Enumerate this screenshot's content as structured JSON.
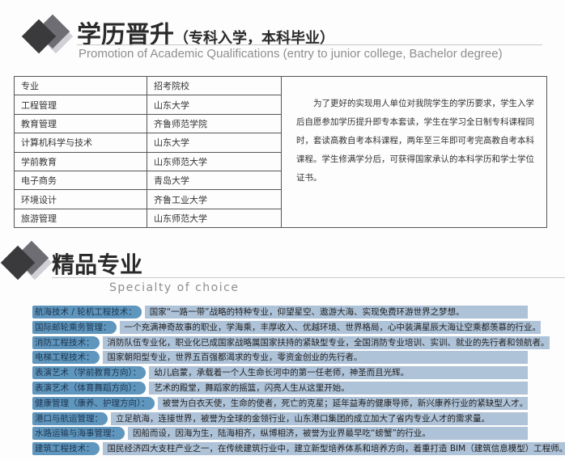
{
  "section1": {
    "title": "学历晋升",
    "title_paren": "（专科入学，本科毕业）",
    "subtitle": "Promotion of Academic Qualifications (entry to junior college, Bachelor degree)"
  },
  "table": {
    "headers": [
      "专业",
      "招考院校"
    ],
    "rows": [
      [
        "工程管理",
        "山东大学"
      ],
      [
        "教育管理",
        "齐鲁师范学院"
      ],
      [
        "计算机科学与技术",
        "山东大学"
      ],
      [
        "学前教育",
        "山东师范大学"
      ],
      [
        "电子商务",
        "青岛大学"
      ],
      [
        "环境设计",
        "齐鲁工业大学"
      ],
      [
        "旅游管理",
        "山东师范大学"
      ]
    ]
  },
  "description": "为了更好的实现用人单位对我院学生的学历要求，学生入学后自愿参加学历提升即专本套读，学生在学习全日制专科课程同时，套读高教自考本科课程，两年至三年即可考完高教自考本科课程。学生修满学分后，可获得国家承认的本科学历和学士学位证书。",
  "section2": {
    "title": "精品专业",
    "subtitle": "Specialty of choice"
  },
  "specialties": [
    {
      "label": "航海技术 / 轮机工程技术：",
      "text": "国家“一路一带”战略的特种专业，仰望星空、遨游大海、实现免费环游世界之梦想。"
    },
    {
      "label": "国际邮轮乘务管理：",
      "text": "一个充满神奇故事的职业，学海乘，丰厚收入、优越环境、世界格局，心中装满星辰大海让空乘都羡慕的行业。"
    },
    {
      "label": "消防工程技术：",
      "text": "消防队伍专业化，职业化已成国家战略属国家扶持的紧缺型专业，全国消防专业培训、实训、就业的先行者和领航者。"
    },
    {
      "label": "电梯工程技术：",
      "text": "国家朝阳型专业，世界五百强都渴求的专业，零资金创业的先行者。"
    },
    {
      "label": "表演艺术（学前教育方向）：",
      "text": "幼儿启蒙，承载着一个人生命长河中的第一任老师，神圣而且光辉。"
    },
    {
      "label": "表演艺术（体育舞蹈方向）：",
      "text": "艺术的殿堂，舞蹈家的摇篮，闪亮人生从这里开始。"
    },
    {
      "label": "健康管理（康养、护理方向）：",
      "text": "被誉为白衣天使，生命的使者，死亡的克星；延年益寿的健康导师，新兴康养行业的紧缺型人才。"
    },
    {
      "label": "港口与航运管理：",
      "text": "立足航海，连接世界，被誉为全球的金领行业，山东港口集团的成立加大了省内专业人才的需求量。"
    },
    {
      "label": "水路运输与海事管理：",
      "text": "因船而设，因海为生，陆海相齐，纵博相济，被誉为业界最早吃“螃蟹”的行业。"
    },
    {
      "label": "建筑工程技术：",
      "text": "国民经济四大支柱产业之一，在传统建筑行业中，建立新型培养体系和培养方向，着重打造 BIM（建筑信息模型）工程师。"
    }
  ],
  "colors": {
    "label_bar": "#5f96bd",
    "text_bar": "#aec2d8",
    "diamond_dark": "#3a3a3c",
    "diamond_mid": "#6d6d73"
  }
}
